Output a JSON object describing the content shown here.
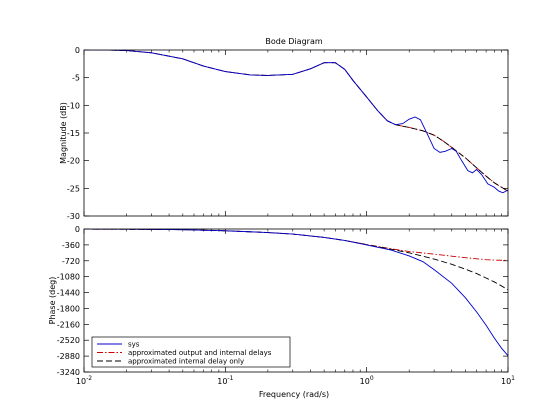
{
  "chart_data": {
    "type": "line",
    "title": "Bode Diagram",
    "xlabel": "Frequency  (rad/s)",
    "xscale": "log",
    "xlim": [
      0.01,
      10
    ],
    "x_ticks": [
      {
        "value": 0.01,
        "base": "10",
        "exp": "-2"
      },
      {
        "value": 0.1,
        "base": "10",
        "exp": "-1"
      },
      {
        "value": 1,
        "base": "10",
        "exp": "0"
      },
      {
        "value": 10,
        "base": "10",
        "exp": "1"
      }
    ],
    "legend": {
      "placement": "bottom-left",
      "entries": [
        {
          "label": "sys",
          "color": "#0000cc",
          "dash": "solid"
        },
        {
          "label": "approximated output and internal delays",
          "color": "#cc0000",
          "dash": "dashdot"
        },
        {
          "label": "approximated internal delay only",
          "color": "#000000",
          "dash": "dashed"
        }
      ]
    },
    "panels": [
      {
        "name": "magnitude",
        "ylabel": "Magnitude (dB)",
        "ylim": [
          -30,
          0
        ],
        "yticks": [
          0,
          -5,
          -10,
          -15,
          -20,
          -25,
          -30
        ],
        "series": [
          {
            "name": "sys",
            "color": "#0000cc",
            "dash": "solid",
            "points": [
              [
                0.01,
                0
              ],
              [
                0.015,
                0
              ],
              [
                0.02,
                -0.1
              ],
              [
                0.03,
                -0.5
              ],
              [
                0.05,
                -1.6
              ],
              [
                0.07,
                -2.9
              ],
              [
                0.1,
                -3.9
              ],
              [
                0.15,
                -4.5
              ],
              [
                0.2,
                -4.6
              ],
              [
                0.3,
                -4.4
              ],
              [
                0.4,
                -3.4
              ],
              [
                0.5,
                -2.3
              ],
              [
                0.6,
                -2.3
              ],
              [
                0.7,
                -3.5
              ],
              [
                0.8,
                -5.5
              ],
              [
                1.0,
                -8.5
              ],
              [
                1.2,
                -11
              ],
              [
                1.4,
                -12.8
              ],
              [
                1.6,
                -13.5
              ],
              [
                1.8,
                -13.3
              ],
              [
                2.0,
                -12.5
              ],
              [
                2.2,
                -12.1
              ],
              [
                2.4,
                -12.6
              ],
              [
                2.7,
                -15.3
              ],
              [
                3.0,
                -17.8
              ],
              [
                3.3,
                -18.5
              ],
              [
                3.6,
                -18.3
              ],
              [
                4.0,
                -17.8
              ],
              [
                4.3,
                -18.3
              ],
              [
                4.7,
                -20.0
              ],
              [
                5.2,
                -21.8
              ],
              [
                5.6,
                -22.2
              ],
              [
                6.0,
                -21.6
              ],
              [
                6.5,
                -22.5
              ],
              [
                7.2,
                -24.2
              ],
              [
                8.0,
                -24.8
              ],
              [
                8.6,
                -25.5
              ],
              [
                9.2,
                -25.8
              ],
              [
                10,
                -25.3
              ]
            ]
          },
          {
            "name": "approximated output and internal delays",
            "color": "#cc0000",
            "dash": "dashdot",
            "points": [
              [
                0.01,
                0
              ],
              [
                0.015,
                0
              ],
              [
                0.02,
                -0.1
              ],
              [
                0.03,
                -0.5
              ],
              [
                0.05,
                -1.6
              ],
              [
                0.07,
                -2.9
              ],
              [
                0.1,
                -3.9
              ],
              [
                0.15,
                -4.5
              ],
              [
                0.2,
                -4.6
              ],
              [
                0.3,
                -4.4
              ],
              [
                0.4,
                -3.4
              ],
              [
                0.5,
                -2.3
              ],
              [
                0.6,
                -2.3
              ],
              [
                0.7,
                -3.5
              ],
              [
                0.8,
                -5.5
              ],
              [
                1.0,
                -8.5
              ],
              [
                1.2,
                -11
              ],
              [
                1.4,
                -12.8
              ],
              [
                1.6,
                -13.5
              ],
              [
                2.0,
                -14.0
              ],
              [
                2.5,
                -14.6
              ],
              [
                3.0,
                -15.4
              ],
              [
                3.5,
                -16.5
              ],
              [
                4.0,
                -17.6
              ],
              [
                5.0,
                -19.5
              ],
              [
                6.0,
                -21.3
              ],
              [
                7.0,
                -22.8
              ],
              [
                8.0,
                -24.0
              ],
              [
                9.0,
                -24.8
              ],
              [
                10,
                -25.5
              ]
            ]
          },
          {
            "name": "approximated internal delay only",
            "color": "#000000",
            "dash": "dashed",
            "points": [
              [
                0.01,
                0
              ],
              [
                0.015,
                0
              ],
              [
                0.02,
                -0.1
              ],
              [
                0.03,
                -0.5
              ],
              [
                0.05,
                -1.6
              ],
              [
                0.07,
                -2.9
              ],
              [
                0.1,
                -3.9
              ],
              [
                0.15,
                -4.5
              ],
              [
                0.2,
                -4.6
              ],
              [
                0.3,
                -4.4
              ],
              [
                0.4,
                -3.4
              ],
              [
                0.5,
                -2.3
              ],
              [
                0.6,
                -2.3
              ],
              [
                0.7,
                -3.5
              ],
              [
                0.8,
                -5.5
              ],
              [
                1.0,
                -8.5
              ],
              [
                1.2,
                -11
              ],
              [
                1.4,
                -12.8
              ],
              [
                1.6,
                -13.5
              ],
              [
                2.0,
                -14.0
              ],
              [
                2.5,
                -14.6
              ],
              [
                3.0,
                -15.4
              ],
              [
                3.5,
                -16.5
              ],
              [
                4.0,
                -17.6
              ],
              [
                5.0,
                -19.5
              ],
              [
                6.0,
                -21.3
              ],
              [
                7.0,
                -22.8
              ],
              [
                8.0,
                -24.0
              ],
              [
                9.0,
                -24.8
              ],
              [
                10,
                -25.5
              ]
            ]
          }
        ]
      },
      {
        "name": "phase",
        "ylabel": "Phase (deg)",
        "ylim": [
          -3240,
          0
        ],
        "yticks": [
          0,
          -360,
          -720,
          -1080,
          -1440,
          -1800,
          -2160,
          -2520,
          -2880,
          -3240
        ],
        "series": [
          {
            "name": "sys",
            "color": "#0000cc",
            "dash": "solid",
            "points": [
              [
                0.01,
                -2
              ],
              [
                0.02,
                -5
              ],
              [
                0.05,
                -15
              ],
              [
                0.1,
                -40
              ],
              [
                0.2,
                -80
              ],
              [
                0.3,
                -115
              ],
              [
                0.5,
                -190
              ],
              [
                0.7,
                -260
              ],
              [
                1.0,
                -360
              ],
              [
                1.5,
                -480
              ],
              [
                2.0,
                -610
              ],
              [
                2.5,
                -740
              ],
              [
                3.0,
                -920
              ],
              [
                4.0,
                -1230
              ],
              [
                5.0,
                -1560
              ],
              [
                6.0,
                -1880
              ],
              [
                7.0,
                -2180
              ],
              [
                8.0,
                -2470
              ],
              [
                9.0,
                -2700
              ],
              [
                10,
                -2870
              ]
            ]
          },
          {
            "name": "approximated output and internal delays",
            "color": "#cc0000",
            "dash": "dashdot",
            "points": [
              [
                0.01,
                -2
              ],
              [
                0.02,
                -5
              ],
              [
                0.05,
                -15
              ],
              [
                0.1,
                -40
              ],
              [
                0.2,
                -80
              ],
              [
                0.3,
                -115
              ],
              [
                0.5,
                -190
              ],
              [
                0.7,
                -260
              ],
              [
                1.0,
                -350
              ],
              [
                1.5,
                -450
              ],
              [
                2.0,
                -510
              ],
              [
                3.0,
                -570
              ],
              [
                4.0,
                -615
              ],
              [
                5.0,
                -650
              ],
              [
                6.0,
                -675
              ],
              [
                7.0,
                -695
              ],
              [
                8.0,
                -705
              ],
              [
                10,
                -710
              ]
            ]
          },
          {
            "name": "approximated internal delay only",
            "color": "#000000",
            "dash": "dashed",
            "points": [
              [
                0.01,
                -2
              ],
              [
                0.02,
                -5
              ],
              [
                0.05,
                -15
              ],
              [
                0.1,
                -40
              ],
              [
                0.2,
                -80
              ],
              [
                0.3,
                -115
              ],
              [
                0.5,
                -190
              ],
              [
                0.7,
                -260
              ],
              [
                1.0,
                -355
              ],
              [
                1.5,
                -460
              ],
              [
                2.0,
                -540
              ],
              [
                3.0,
                -680
              ],
              [
                4.0,
                -800
              ],
              [
                5.0,
                -910
              ],
              [
                6.0,
                -1010
              ],
              [
                7.0,
                -1110
              ],
              [
                8.0,
                -1200
              ],
              [
                9.0,
                -1290
              ],
              [
                10,
                -1380
              ]
            ]
          }
        ]
      }
    ]
  }
}
